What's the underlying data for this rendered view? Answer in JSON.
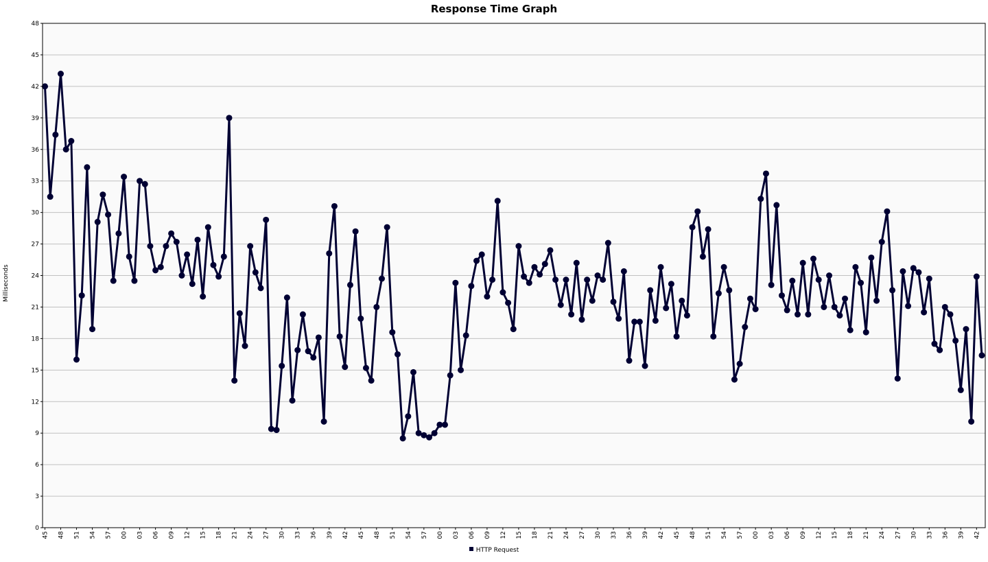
{
  "chart_data": {
    "type": "line",
    "title": "Response Time Graph",
    "ylabel": "Milliseconds",
    "xlabel": "",
    "ylim": [
      0,
      48
    ],
    "yticks": [
      0,
      3,
      6,
      9,
      12,
      15,
      18,
      21,
      24,
      27,
      30,
      33,
      36,
      39,
      42,
      45,
      48
    ],
    "xtick_labels": [
      "45",
      "48",
      "51",
      "54",
      "57",
      "00",
      "03",
      "06",
      "09",
      "12",
      "15",
      "18",
      "21",
      "24",
      "27",
      "30",
      "33",
      "36",
      "39",
      "42",
      "45",
      "48",
      "51",
      "54",
      "57",
      "00",
      "03",
      "06",
      "09",
      "12",
      "15",
      "18",
      "21",
      "24",
      "27",
      "30",
      "33",
      "36",
      "39",
      "42",
      "45",
      "48",
      "51",
      "54",
      "57",
      "00",
      "03",
      "06",
      "09",
      "12",
      "15",
      "18",
      "21",
      "24",
      "27",
      "30",
      "33",
      "36",
      "39",
      "42"
    ],
    "grid": true,
    "legend_position": "bottom-center",
    "series": [
      {
        "name": "HTTP Request",
        "color": "#000033",
        "values": [
          42.0,
          31.5,
          37.4,
          43.2,
          36.0,
          36.8,
          16.0,
          22.1,
          34.3,
          18.9,
          29.1,
          31.7,
          29.8,
          23.5,
          28.0,
          33.4,
          25.8,
          23.5,
          33.0,
          32.7,
          26.8,
          24.5,
          24.8,
          26.8,
          28.0,
          27.2,
          24.0,
          26.0,
          23.2,
          27.4,
          22.0,
          28.6,
          25.0,
          23.9,
          25.8,
          39.0,
          14.0,
          20.4,
          17.3,
          26.8,
          24.3,
          22.8,
          29.3,
          9.4,
          9.3,
          15.4,
          21.9,
          12.1,
          16.9,
          20.3,
          16.8,
          16.2,
          18.1,
          10.1,
          26.1,
          30.6,
          18.2,
          15.3,
          23.1,
          28.2,
          19.9,
          15.2,
          14.0,
          21.0,
          23.7,
          28.6,
          18.6,
          16.5,
          8.5,
          10.6,
          14.8,
          9.0,
          8.8,
          8.6,
          9.0,
          9.8,
          9.8,
          14.5,
          23.3,
          15.0,
          18.3,
          23.0,
          25.4,
          26.0,
          22.0,
          23.6,
          31.1,
          22.4,
          21.4,
          18.9,
          26.8,
          23.9,
          23.3,
          24.8,
          24.1,
          25.1,
          26.4,
          23.6,
          21.2,
          23.6,
          20.3,
          25.2,
          19.8,
          23.6,
          21.6,
          24.0,
          23.6,
          27.1,
          21.5,
          19.9,
          24.4,
          15.9,
          19.6,
          19.6,
          15.4,
          22.6,
          19.7,
          24.8,
          20.9,
          23.2,
          18.2,
          21.6,
          20.2,
          28.6,
          30.1,
          25.8,
          28.4,
          18.2,
          22.3,
          24.8,
          22.6,
          14.1,
          15.6,
          19.1,
          21.8,
          20.8,
          31.3,
          33.7,
          23.1,
          30.7,
          22.1,
          20.7,
          23.5,
          20.3,
          25.2,
          20.3,
          25.6,
          23.6,
          21.0,
          24.0,
          21.0,
          20.2,
          21.8,
          18.8,
          24.8,
          23.3,
          18.6,
          25.7,
          21.6,
          27.2,
          30.1,
          22.6,
          14.2,
          24.4,
          21.1,
          24.7,
          24.3,
          20.5,
          23.7,
          17.5,
          16.9,
          21.0,
          20.3,
          17.8,
          13.1,
          18.9,
          10.1,
          23.9,
          16.4
        ]
      }
    ]
  }
}
